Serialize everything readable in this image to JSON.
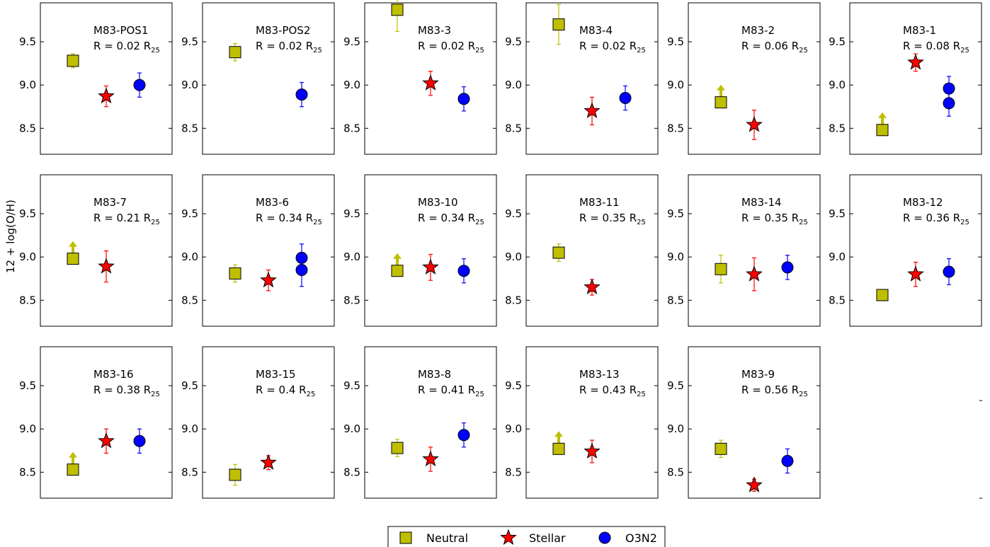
{
  "figure": {
    "ylabel": "12 + log(O/H)",
    "ylim": [
      8.2,
      9.95
    ],
    "yticks": [
      "8.5",
      "9.0",
      "9.5"
    ],
    "legend": {
      "placement": "bottom-center",
      "entries": [
        {
          "name": "Neutral",
          "marker": "square",
          "color": "#bfbf00"
        },
        {
          "name": "Stellar",
          "marker": "star",
          "color": "#ff0000"
        },
        {
          "name": "O3N2",
          "marker": "circle",
          "color": "#0000ff"
        }
      ]
    }
  },
  "chart_data": [
    {
      "type": "scatter",
      "name": "M83-POS1",
      "radius_label": "R = 0.02 R",
      "radius_sub": "25",
      "ylim": [
        8.2,
        9.95
      ],
      "series": [
        {
          "name": "Neutral",
          "points": [
            {
              "x": 1,
              "y": 9.28,
              "err": 0.08
            }
          ]
        },
        {
          "name": "Stellar",
          "points": [
            {
              "x": 2,
              "y": 8.87,
              "err": 0.12
            }
          ]
        },
        {
          "name": "O3N2",
          "points": [
            {
              "x": 3,
              "y": 9.0,
              "err": 0.14
            }
          ]
        }
      ]
    },
    {
      "type": "scatter",
      "name": "M83-POS2",
      "radius_label": "R = 0.02 R",
      "radius_sub": "25",
      "ylim": [
        8.2,
        9.95
      ],
      "series": [
        {
          "name": "Neutral",
          "points": [
            {
              "x": 1,
              "y": 9.38,
              "err": 0.1
            }
          ]
        },
        {
          "name": "O3N2",
          "points": [
            {
              "x": 3,
              "y": 8.89,
              "err": 0.14
            }
          ]
        }
      ]
    },
    {
      "type": "scatter",
      "name": "M83-3",
      "radius_label": "R = 0.02 R",
      "radius_sub": "25",
      "ylim": [
        8.2,
        9.95
      ],
      "series": [
        {
          "name": "Neutral",
          "points": [
            {
              "x": 1,
              "y": 9.87,
              "err": 0.25
            }
          ]
        },
        {
          "name": "Stellar",
          "points": [
            {
              "x": 2,
              "y": 9.02,
              "err": 0.14
            }
          ]
        },
        {
          "name": "O3N2",
          "points": [
            {
              "x": 3,
              "y": 8.84,
              "err": 0.14
            }
          ]
        }
      ]
    },
    {
      "type": "scatter",
      "name": "M83-4",
      "radius_label": "R = 0.02 R",
      "radius_sub": "25",
      "ylim": [
        8.2,
        9.95
      ],
      "series": [
        {
          "name": "Neutral",
          "points": [
            {
              "x": 1,
              "y": 9.7,
              "err": 0.23
            }
          ]
        },
        {
          "name": "Stellar",
          "points": [
            {
              "x": 2,
              "y": 8.7,
              "err": 0.16
            }
          ]
        },
        {
          "name": "O3N2",
          "points": [
            {
              "x": 3,
              "y": 8.85,
              "err": 0.14
            }
          ]
        }
      ]
    },
    {
      "type": "scatter",
      "name": "M83-2",
      "radius_label": "R = 0.06 R",
      "radius_sub": "25",
      "ylim": [
        8.2,
        9.95
      ],
      "series": [
        {
          "name": "Neutral",
          "points": [
            {
              "x": 1,
              "y": 8.8,
              "lower_limit": true
            }
          ]
        },
        {
          "name": "Stellar",
          "points": [
            {
              "x": 2,
              "y": 8.54,
              "err": 0.17
            }
          ]
        }
      ]
    },
    {
      "type": "scatter",
      "name": "M83-1",
      "radius_label": "R = 0.08 R",
      "radius_sub": "25",
      "ylim": [
        8.2,
        9.95
      ],
      "series": [
        {
          "name": "Neutral",
          "points": [
            {
              "x": 1,
              "y": 8.48,
              "lower_limit": true
            }
          ]
        },
        {
          "name": "Stellar",
          "points": [
            {
              "x": 2,
              "y": 9.26,
              "err": 0.1
            }
          ]
        },
        {
          "name": "O3N2",
          "points": [
            {
              "x": 3,
              "y": 8.96,
              "err": 0.14
            },
            {
              "x": 3,
              "y": 8.79,
              "err": 0.15
            }
          ]
        }
      ]
    },
    {
      "type": "scatter",
      "name": "M83-7",
      "radius_label": "R = 0.21 R",
      "radius_sub": "25",
      "ylim": [
        8.2,
        9.95
      ],
      "series": [
        {
          "name": "Neutral",
          "points": [
            {
              "x": 1,
              "y": 8.98,
              "lower_limit": true
            }
          ]
        },
        {
          "name": "Stellar",
          "points": [
            {
              "x": 2,
              "y": 8.89,
              "err": 0.18
            }
          ]
        }
      ]
    },
    {
      "type": "scatter",
      "name": "M83-6",
      "radius_label": "R = 0.34 R",
      "radius_sub": "25",
      "ylim": [
        8.2,
        9.95
      ],
      "series": [
        {
          "name": "Neutral",
          "points": [
            {
              "x": 1,
              "y": 8.81,
              "err": 0.1
            }
          ]
        },
        {
          "name": "Stellar",
          "points": [
            {
              "x": 2,
              "y": 8.73,
              "err": 0.12
            }
          ]
        },
        {
          "name": "O3N2",
          "points": [
            {
              "x": 3,
              "y": 8.99,
              "err": 0.16
            },
            {
              "x": 3,
              "y": 8.85,
              "err": 0.19
            }
          ]
        }
      ]
    },
    {
      "type": "scatter",
      "name": "M83-10",
      "radius_label": "R = 0.34 R",
      "radius_sub": "25",
      "ylim": [
        8.2,
        9.95
      ],
      "series": [
        {
          "name": "Neutral",
          "points": [
            {
              "x": 1,
              "y": 8.84,
              "lower_limit": true
            }
          ]
        },
        {
          "name": "Stellar",
          "points": [
            {
              "x": 2,
              "y": 8.88,
              "err": 0.15
            }
          ]
        },
        {
          "name": "O3N2",
          "points": [
            {
              "x": 3,
              "y": 8.84,
              "err": 0.14
            }
          ]
        }
      ]
    },
    {
      "type": "scatter",
      "name": "M83-11",
      "radius_label": "R = 0.35 R",
      "radius_sub": "25",
      "ylim": [
        8.2,
        9.95
      ],
      "series": [
        {
          "name": "Neutral",
          "points": [
            {
              "x": 1,
              "y": 9.05,
              "err": 0.1
            }
          ]
        },
        {
          "name": "Stellar",
          "points": [
            {
              "x": 2,
              "y": 8.65,
              "err": 0.09
            }
          ]
        }
      ]
    },
    {
      "type": "scatter",
      "name": "M83-14",
      "radius_label": "R = 0.35 R",
      "radius_sub": "25",
      "ylim": [
        8.2,
        9.95
      ],
      "series": [
        {
          "name": "Neutral",
          "points": [
            {
              "x": 1,
              "y": 8.86,
              "err": 0.16
            }
          ]
        },
        {
          "name": "Stellar",
          "points": [
            {
              "x": 2,
              "y": 8.8,
              "err": 0.19
            }
          ]
        },
        {
          "name": "O3N2",
          "points": [
            {
              "x": 3,
              "y": 8.88,
              "err": 0.14
            }
          ]
        }
      ]
    },
    {
      "type": "scatter",
      "name": "M83-12",
      "radius_label": "R = 0.36 R",
      "radius_sub": "25",
      "ylim": [
        8.2,
        9.95
      ],
      "series": [
        {
          "name": "Neutral",
          "points": [
            {
              "x": 1,
              "y": 8.56,
              "err": 0.05
            }
          ]
        },
        {
          "name": "Stellar",
          "points": [
            {
              "x": 2,
              "y": 8.8,
              "err": 0.14
            }
          ]
        },
        {
          "name": "O3N2",
          "points": [
            {
              "x": 3,
              "y": 8.83,
              "err": 0.15
            }
          ]
        }
      ]
    },
    {
      "type": "scatter",
      "name": "M83-16",
      "radius_label": "R = 0.38 R",
      "radius_sub": "25",
      "ylim": [
        8.2,
        9.95
      ],
      "series": [
        {
          "name": "Neutral",
          "points": [
            {
              "x": 1,
              "y": 8.53,
              "lower_limit": true
            }
          ]
        },
        {
          "name": "Stellar",
          "points": [
            {
              "x": 2,
              "y": 8.86,
              "err": 0.14
            }
          ]
        },
        {
          "name": "O3N2",
          "points": [
            {
              "x": 3,
              "y": 8.86,
              "err": 0.14
            }
          ]
        }
      ]
    },
    {
      "type": "scatter",
      "name": "M83-15",
      "radius_label": "R = 0.4 R",
      "radius_sub": "25",
      "ylim": [
        8.2,
        9.95
      ],
      "series": [
        {
          "name": "Neutral",
          "points": [
            {
              "x": 1,
              "y": 8.47,
              "err": 0.12
            }
          ]
        },
        {
          "name": "Stellar",
          "points": [
            {
              "x": 2,
              "y": 8.61,
              "err": 0.08
            }
          ]
        }
      ]
    },
    {
      "type": "scatter",
      "name": "M83-8",
      "radius_label": "R = 0.41 R",
      "radius_sub": "25",
      "ylim": [
        8.2,
        9.95
      ],
      "series": [
        {
          "name": "Neutral",
          "points": [
            {
              "x": 1,
              "y": 8.78,
              "err": 0.1
            }
          ]
        },
        {
          "name": "Stellar",
          "points": [
            {
              "x": 2,
              "y": 8.65,
              "err": 0.14
            }
          ]
        },
        {
          "name": "O3N2",
          "points": [
            {
              "x": 3,
              "y": 8.93,
              "err": 0.14
            }
          ]
        }
      ]
    },
    {
      "type": "scatter",
      "name": "M83-13",
      "radius_label": "R = 0.43 R",
      "radius_sub": "25",
      "ylim": [
        8.2,
        9.95
      ],
      "series": [
        {
          "name": "Neutral",
          "points": [
            {
              "x": 1,
              "y": 8.77,
              "lower_limit": true
            }
          ]
        },
        {
          "name": "Stellar",
          "points": [
            {
              "x": 2,
              "y": 8.74,
              "err": 0.13
            }
          ]
        }
      ]
    },
    {
      "type": "scatter",
      "name": "M83-9",
      "radius_label": "R = 0.56 R",
      "radius_sub": "25",
      "ylim": [
        8.2,
        9.95
      ],
      "series": [
        {
          "name": "Neutral",
          "points": [
            {
              "x": 1,
              "y": 8.77,
              "err": 0.1
            }
          ]
        },
        {
          "name": "Stellar",
          "points": [
            {
              "x": 2,
              "y": 8.35,
              "err": 0.07
            }
          ]
        },
        {
          "name": "O3N2",
          "points": [
            {
              "x": 3,
              "y": 8.63,
              "err": 0.14
            }
          ]
        }
      ]
    }
  ]
}
